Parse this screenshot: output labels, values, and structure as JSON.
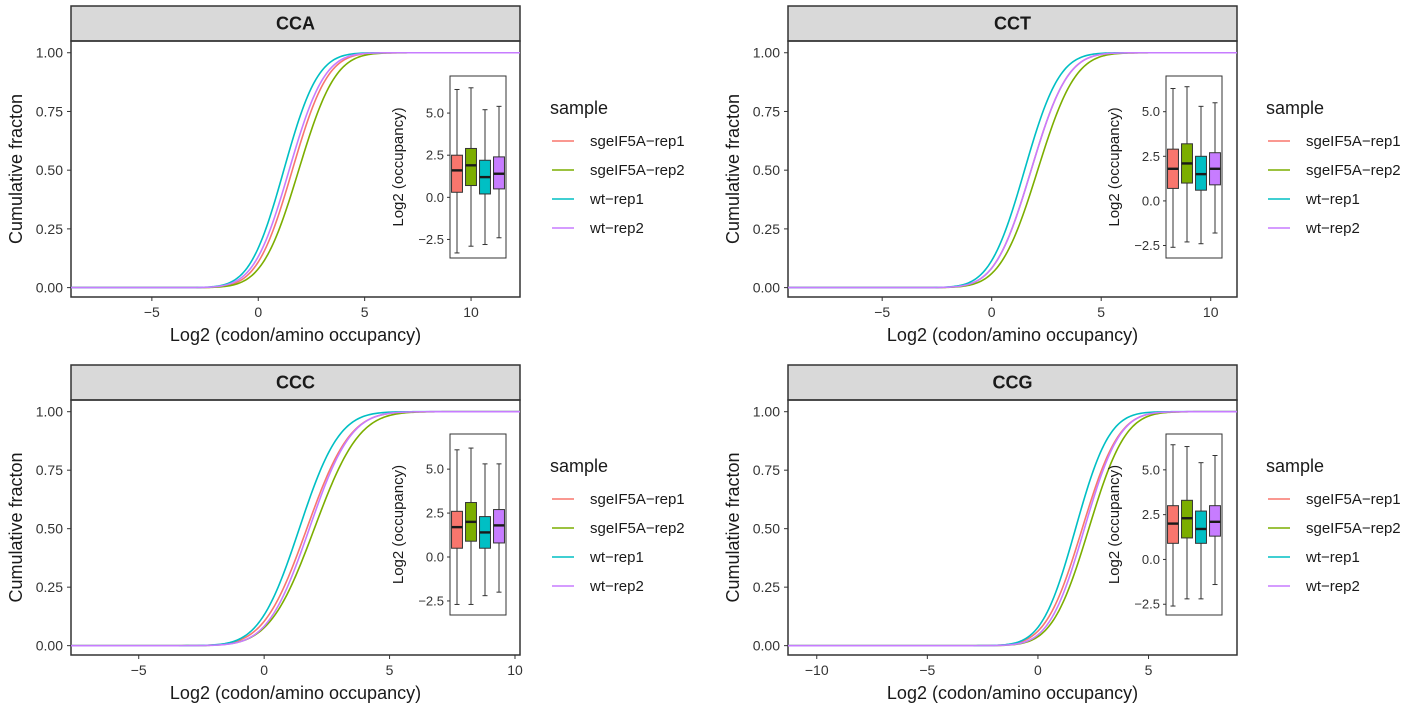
{
  "chart_data": [
    {
      "type": "line",
      "panel": "CCA",
      "xlabel": "Log2 (codon/amino occupancy)",
      "ylabel": "Cumulative fracton",
      "xlim": [
        -8.8,
        12.3
      ],
      "ylim": [
        -0.04,
        1.05
      ],
      "xticks": [
        -5,
        0,
        5,
        10
      ],
      "yticks": [
        "0.00",
        "0.25",
        "0.50",
        "0.75",
        "1.00"
      ],
      "series": [
        {
          "name": "sgeIF5A-rep1",
          "color": "#F8766D",
          "mu": 1.6,
          "sigma": 1.3
        },
        {
          "name": "sgeIF5A-rep2",
          "color": "#7CAE00",
          "mu": 1.9,
          "sigma": 1.35
        },
        {
          "name": "wt-rep1",
          "color": "#00BFC4",
          "mu": 1.2,
          "sigma": 1.25
        },
        {
          "name": "wt-rep2",
          "color": "#C77CFF",
          "mu": 1.45,
          "sigma": 1.3
        }
      ],
      "inset": {
        "ylabel": "Log2 (occupancy)",
        "ylim": [
          -3.6,
          7.2
        ],
        "yticks": [
          "-2.5",
          "0.0",
          "2.5",
          "5.0"
        ],
        "boxes": [
          {
            "series": "sgeIF5A-rep1",
            "min": -3.3,
            "q1": 0.3,
            "median": 1.6,
            "q3": 2.5,
            "max": 6.4
          },
          {
            "series": "sgeIF5A-rep2",
            "min": -2.9,
            "q1": 0.7,
            "median": 1.9,
            "q3": 2.9,
            "max": 6.5
          },
          {
            "series": "wt-rep1",
            "min": -2.8,
            "q1": 0.2,
            "median": 1.2,
            "q3": 2.2,
            "max": 5.2
          },
          {
            "series": "wt-rep2",
            "min": -2.4,
            "q1": 0.5,
            "median": 1.4,
            "q3": 2.4,
            "max": 5.4
          }
        ]
      }
    },
    {
      "type": "line",
      "panel": "CCT",
      "xlabel": "Log2 (codon/amino occupancy)",
      "ylabel": "Cumulative fracton",
      "xlim": [
        -9.3,
        11.2
      ],
      "ylim": [
        -0.04,
        1.05
      ],
      "xticks": [
        -5,
        0,
        5,
        10
      ],
      "yticks": [
        "0.00",
        "0.25",
        "0.50",
        "0.75",
        "1.00"
      ],
      "series": [
        {
          "name": "sgeIF5A-rep1",
          "color": "#F8766D",
          "mu": 1.8,
          "sigma": 1.3
        },
        {
          "name": "sgeIF5A-rep2",
          "color": "#7CAE00",
          "mu": 2.1,
          "sigma": 1.35
        },
        {
          "name": "wt-rep1",
          "color": "#00BFC4",
          "mu": 1.5,
          "sigma": 1.25
        },
        {
          "name": "wt-rep2",
          "color": "#C77CFF",
          "mu": 1.8,
          "sigma": 1.3
        }
      ],
      "inset": {
        "ylabel": "Log2 (occupancy)",
        "ylim": [
          -3.2,
          7.0
        ],
        "yticks": [
          "-2.5",
          "0.0",
          "2.5",
          "5.0"
        ],
        "boxes": [
          {
            "series": "sgeIF5A-rep1",
            "min": -2.6,
            "q1": 0.7,
            "median": 1.8,
            "q3": 2.9,
            "max": 6.3
          },
          {
            "series": "sgeIF5A-rep2",
            "min": -2.3,
            "q1": 1.0,
            "median": 2.1,
            "q3": 3.2,
            "max": 6.4
          },
          {
            "series": "wt-rep1",
            "min": -2.4,
            "q1": 0.6,
            "median": 1.5,
            "q3": 2.5,
            "max": 5.3
          },
          {
            "series": "wt-rep2",
            "min": -1.8,
            "q1": 0.9,
            "median": 1.8,
            "q3": 2.7,
            "max": 5.5
          }
        ]
      }
    },
    {
      "type": "line",
      "panel": "CCC",
      "xlabel": "Log2 (codon/amino occupancy)",
      "ylabel": "Cumulative fracton",
      "xlim": [
        -7.7,
        10.2
      ],
      "ylim": [
        -0.04,
        1.05
      ],
      "xticks": [
        -5,
        0,
        5,
        10
      ],
      "yticks": [
        "0.00",
        "0.25",
        "0.50",
        "0.75",
        "1.00"
      ],
      "series": [
        {
          "name": "sgeIF5A-rep1",
          "color": "#F8766D",
          "mu": 1.7,
          "sigma": 1.35
        },
        {
          "name": "sgeIF5A-rep2",
          "color": "#7CAE00",
          "mu": 2.0,
          "sigma": 1.4
        },
        {
          "name": "wt-rep1",
          "color": "#00BFC4",
          "mu": 1.4,
          "sigma": 1.25
        },
        {
          "name": "wt-rep2",
          "color": "#C77CFF",
          "mu": 1.8,
          "sigma": 1.3
        }
      ],
      "inset": {
        "ylabel": "Log2 (occupancy)",
        "ylim": [
          -3.3,
          7.0
        ],
        "yticks": [
          "-2.5",
          "0.0",
          "2.5",
          "5.0"
        ],
        "boxes": [
          {
            "series": "sgeIF5A-rep1",
            "min": -2.7,
            "q1": 0.5,
            "median": 1.7,
            "q3": 2.6,
            "max": 6.1
          },
          {
            "series": "sgeIF5A-rep2",
            "min": -2.7,
            "q1": 0.9,
            "median": 2.0,
            "q3": 3.1,
            "max": 6.2
          },
          {
            "series": "wt-rep1",
            "min": -2.2,
            "q1": 0.5,
            "median": 1.4,
            "q3": 2.3,
            "max": 5.3
          },
          {
            "series": "wt-rep2",
            "min": -2.0,
            "q1": 0.8,
            "median": 1.8,
            "q3": 2.7,
            "max": 5.3
          }
        ]
      }
    },
    {
      "type": "line",
      "panel": "CCG",
      "xlabel": "Log2 (codon/amino occupancy)",
      "ylabel": "Cumulative fracton",
      "xlim": [
        -11.3,
        9.0
      ],
      "ylim": [
        -0.04,
        1.05
      ],
      "xticks": [
        -10,
        -5,
        0,
        5
      ],
      "yticks": [
        "0.00",
        "0.25",
        "0.50",
        "0.75",
        "1.00"
      ],
      "series": [
        {
          "name": "sgeIF5A-rep1",
          "color": "#F8766D",
          "mu": 2.0,
          "sigma": 1.3
        },
        {
          "name": "sgeIF5A-rep2",
          "color": "#7CAE00",
          "mu": 2.3,
          "sigma": 1.3
        },
        {
          "name": "wt-rep1",
          "color": "#00BFC4",
          "mu": 1.7,
          "sigma": 1.2
        },
        {
          "name": "wt-rep2",
          "color": "#C77CFF",
          "mu": 2.1,
          "sigma": 1.25
        }
      ],
      "inset": {
        "ylabel": "Log2 (occupancy)",
        "ylim": [
          -3.1,
          7.0
        ],
        "yticks": [
          "-2.5",
          "0.0",
          "2.5",
          "5.0"
        ],
        "boxes": [
          {
            "series": "sgeIF5A-rep1",
            "min": -2.6,
            "q1": 0.9,
            "median": 2.0,
            "q3": 3.0,
            "max": 6.4
          },
          {
            "series": "sgeIF5A-rep2",
            "min": -2.2,
            "q1": 1.2,
            "median": 2.3,
            "q3": 3.3,
            "max": 6.3
          },
          {
            "series": "wt-rep1",
            "min": -2.2,
            "q1": 0.9,
            "median": 1.7,
            "q3": 2.7,
            "max": 5.4
          },
          {
            "series": "wt-rep2",
            "min": -1.4,
            "q1": 1.3,
            "median": 2.1,
            "q3": 3.0,
            "max": 5.8
          }
        ]
      }
    }
  ],
  "legend": {
    "title": "sample",
    "items": [
      {
        "label": "sgeIF5A-rep1",
        "color": "#F8766D"
      },
      {
        "label": "sgeIF5A-rep2",
        "color": "#7CAE00"
      },
      {
        "label": "wt-rep1",
        "color": "#00BFC4"
      },
      {
        "label": "wt-rep2",
        "color": "#C77CFF"
      }
    ]
  },
  "colors": {
    "strip_fill": "#D9D9D9",
    "panel_border": "#333333"
  }
}
